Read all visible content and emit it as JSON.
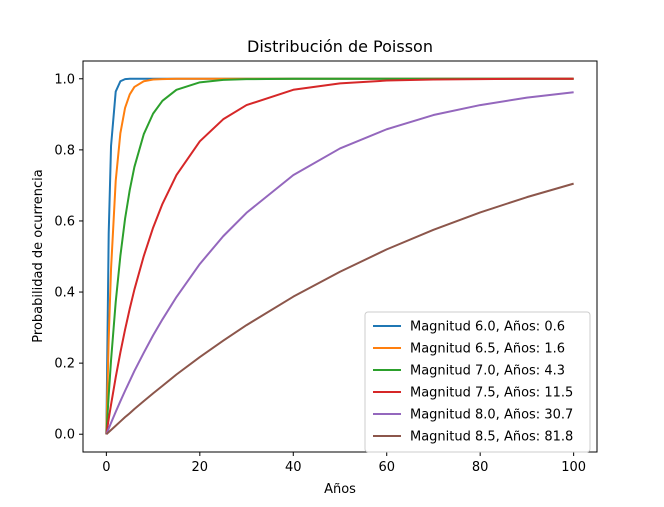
{
  "chart_data": {
    "type": "line",
    "title": "Distribución de Poisson",
    "xlabel": "Años",
    "ylabel": "Probabilidad de ocurrencia",
    "xlim": [
      -5,
      105
    ],
    "ylim": [
      -0.05,
      1.05
    ],
    "xticks": [
      0,
      20,
      40,
      60,
      80,
      100
    ],
    "xtick_labels": [
      "0",
      "20",
      "40",
      "60",
      "80",
      "100"
    ],
    "yticks": [
      0.0,
      0.2,
      0.4,
      0.6,
      0.8,
      1.0
    ],
    "ytick_labels": [
      "0.0",
      "0.2",
      "0.4",
      "0.6",
      "0.8",
      "1.0"
    ],
    "grid": false,
    "legend_position": "lower-right",
    "x": [
      0,
      0.5,
      1,
      2,
      3,
      4,
      5,
      6,
      8,
      10,
      12,
      15,
      20,
      25,
      30,
      40,
      50,
      60,
      70,
      80,
      90,
      100
    ],
    "series": [
      {
        "name": "Magnitud 6.0, Años: 0.6",
        "color": "#1f77b4",
        "values": [
          0.0,
          0.565,
          0.811,
          0.964,
          0.993,
          0.999,
          1.0,
          1.0,
          1.0,
          1.0,
          1.0,
          1.0,
          1.0,
          1.0,
          1.0,
          1.0,
          1.0,
          1.0,
          1.0,
          1.0,
          1.0,
          1.0
        ]
      },
      {
        "name": "Magnitud 6.5, Años: 1.6",
        "color": "#ff7f0e",
        "values": [
          0.0,
          0.268,
          0.465,
          0.713,
          0.847,
          0.918,
          0.956,
          0.977,
          0.993,
          0.998,
          0.999,
          1.0,
          1.0,
          1.0,
          1.0,
          1.0,
          1.0,
          1.0,
          1.0,
          1.0,
          1.0,
          1.0
        ]
      },
      {
        "name": "Magnitud 7.0, Años: 4.3",
        "color": "#2ca02c",
        "values": [
          0.0,
          0.11,
          0.208,
          0.372,
          0.502,
          0.606,
          0.687,
          0.752,
          0.844,
          0.902,
          0.938,
          0.969,
          0.99,
          0.997,
          0.999,
          1.0,
          1.0,
          1.0,
          1.0,
          1.0,
          1.0,
          1.0
        ]
      },
      {
        "name": "Magnitud 7.5, Años: 11.5",
        "color": "#d62728",
        "values": [
          0.0,
          0.043,
          0.083,
          0.16,
          0.23,
          0.294,
          0.353,
          0.407,
          0.501,
          0.581,
          0.648,
          0.729,
          0.824,
          0.886,
          0.926,
          0.969,
          0.987,
          0.995,
          0.998,
          0.999,
          1.0,
          1.0
        ]
      },
      {
        "name": "Magnitud 8.0, Años: 30.7",
        "color": "#9467bd",
        "values": [
          0.0,
          0.016,
          0.032,
          0.063,
          0.093,
          0.122,
          0.15,
          0.178,
          0.229,
          0.278,
          0.323,
          0.386,
          0.479,
          0.557,
          0.623,
          0.729,
          0.804,
          0.858,
          0.898,
          0.926,
          0.947,
          0.962
        ]
      },
      {
        "name": "Magnitud 8.5, Años: 81.8",
        "color": "#8c564b",
        "values": [
          0.0,
          0.006,
          0.012,
          0.024,
          0.036,
          0.048,
          0.059,
          0.071,
          0.093,
          0.115,
          0.136,
          0.168,
          0.217,
          0.263,
          0.307,
          0.387,
          0.457,
          0.52,
          0.575,
          0.624,
          0.667,
          0.705
        ]
      }
    ]
  }
}
